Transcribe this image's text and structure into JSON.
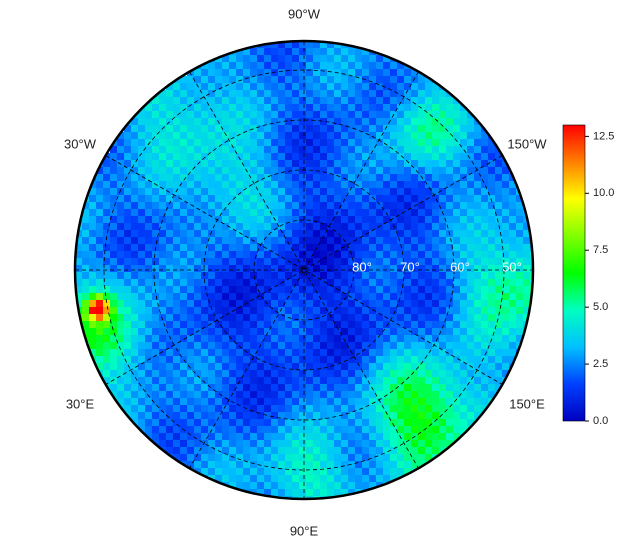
{
  "map": {
    "longitude_labels": [
      "90°W",
      "30°W",
      "150°W",
      "30°E",
      "150°E",
      "90°E"
    ],
    "latitude_labels": [
      "80°",
      "70°",
      "60°",
      "50°"
    ],
    "colorbar": {
      "range": [
        0,
        13
      ],
      "ticks": [
        {
          "value": 0,
          "label": "0.0"
        },
        2.5,
        {
          "value": 5,
          "label": "5.0"
        },
        7.5,
        {
          "value": 10,
          "label": "10.0"
        },
        12.5
      ],
      "colors": [
        "#0000c0",
        "#0040ff",
        "#00c0ff",
        "#00ffc0",
        "#00ff00",
        "#80ff00",
        "#ffff00",
        "#ff8000",
        "#ff0000"
      ]
    }
  }
}
